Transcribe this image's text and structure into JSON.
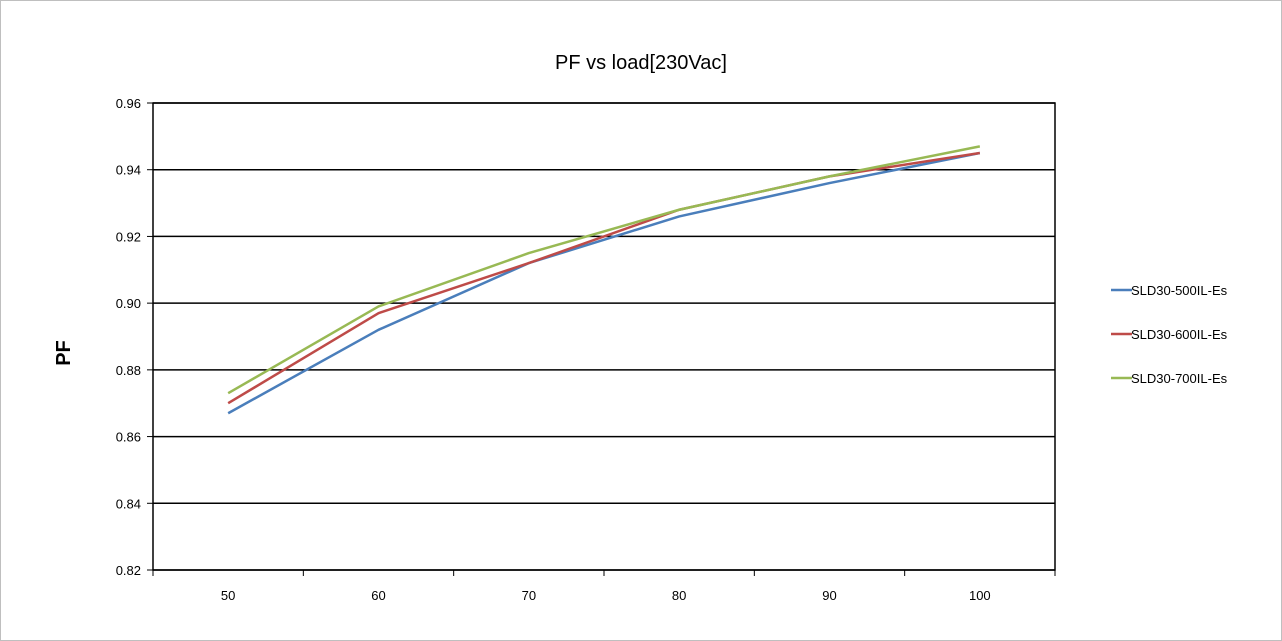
{
  "chart_data": {
    "type": "line",
    "title": "PF vs load[230Vac]",
    "xlabel": "",
    "ylabel": "PF",
    "x": [
      50,
      60,
      70,
      80,
      90,
      100
    ],
    "ylim": [
      0.82,
      0.96
    ],
    "yticks": [
      "0.82",
      "0.84",
      "0.86",
      "0.88",
      "0.90",
      "0.92",
      "0.94",
      "0.96"
    ],
    "xticks": [
      "50",
      "60",
      "70",
      "80",
      "90",
      "100"
    ],
    "grid": "horizontal",
    "legend": "right",
    "series": [
      {
        "name": "SLD30-500IL-Es",
        "color": "#4a7ebb",
        "values": [
          0.867,
          0.892,
          0.912,
          0.926,
          0.936,
          0.945
        ]
      },
      {
        "name": "SLD30-600IL-Es",
        "color": "#be4b48",
        "values": [
          0.87,
          0.897,
          0.912,
          0.928,
          0.938,
          0.945
        ]
      },
      {
        "name": "SLD30-700IL-Es",
        "color": "#98b954",
        "values": [
          0.873,
          0.899,
          0.915,
          0.928,
          0.938,
          0.947
        ]
      }
    ]
  }
}
